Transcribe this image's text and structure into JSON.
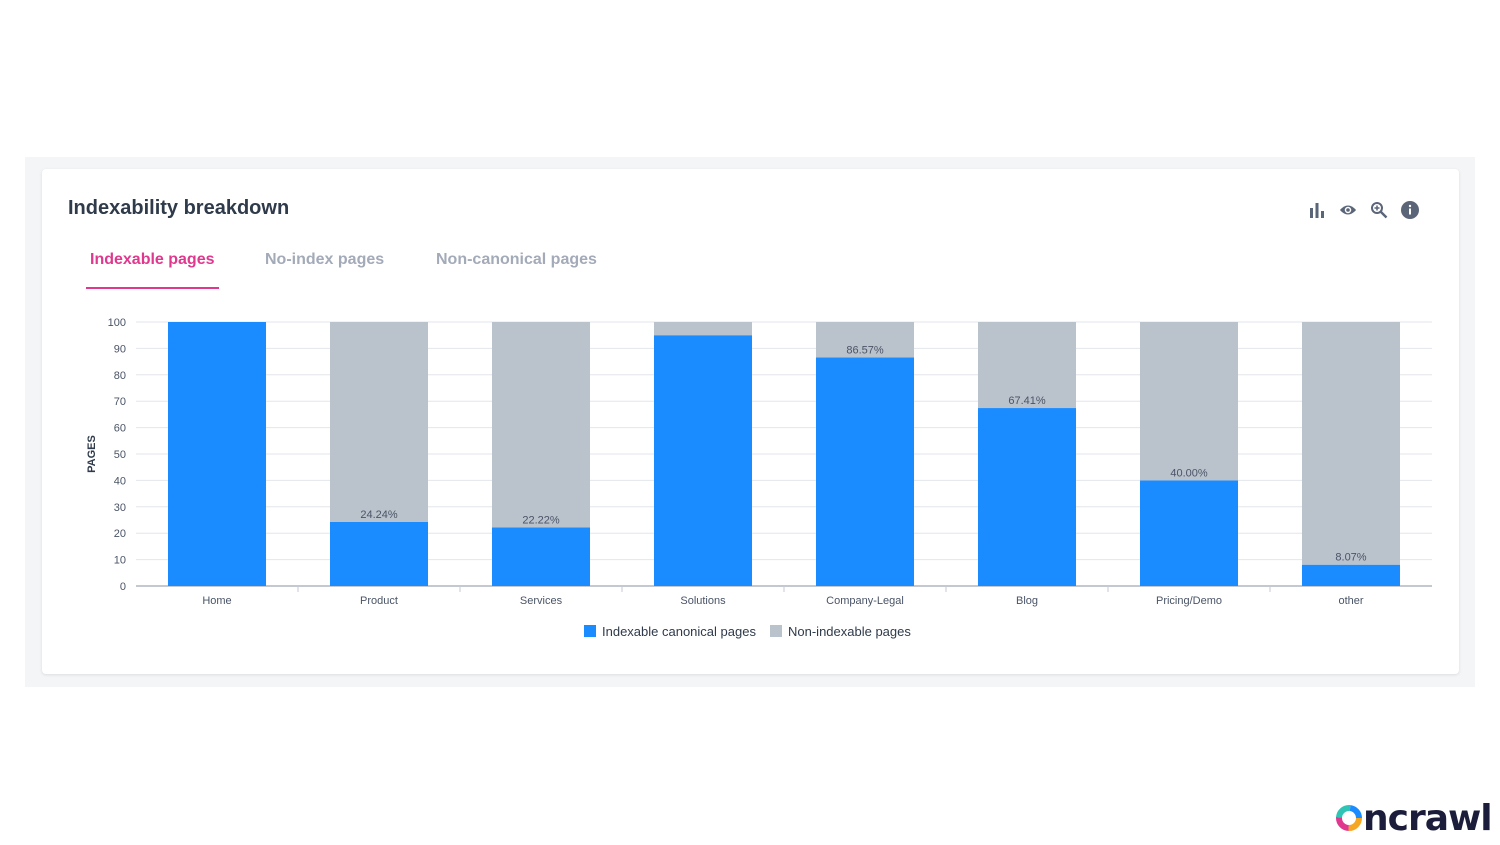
{
  "card": {
    "title": "Indexability breakdown"
  },
  "toolbar": {
    "icons": [
      "bar-chart-icon",
      "eye-icon",
      "zoom-icon",
      "info-icon"
    ]
  },
  "tabs": [
    {
      "label": "Indexable pages",
      "active": true
    },
    {
      "label": "No-index pages",
      "active": false
    },
    {
      "label": "Non-canonical pages",
      "active": false
    }
  ],
  "colors": {
    "indexable": "#1a8cff",
    "non_indexable": "#bac2cc",
    "accent": "#e0388e"
  },
  "chart_data": {
    "type": "bar",
    "stacked": true,
    "categories": [
      "Home",
      "Product",
      "Services",
      "Solutions",
      "Company-Legal",
      "Blog",
      "Pricing/Demo",
      "other"
    ],
    "series": [
      {
        "name": "Indexable canonical pages",
        "values": [
          100,
          24.24,
          22.22,
          95,
          86.57,
          67.41,
          40.0,
          8.07
        ]
      },
      {
        "name": "Non-indexable pages",
        "values": [
          0,
          75.76,
          77.78,
          5,
          13.43,
          32.59,
          60.0,
          91.93
        ]
      }
    ],
    "data_labels": [
      "",
      "24.24%",
      "22.22%",
      "",
      "86.57%",
      "67.41%",
      "40.00%",
      "8.07%"
    ],
    "ylabel": "PAGES",
    "xlabel": "",
    "ylim": [
      0,
      100
    ],
    "yticks": [
      0,
      10,
      20,
      30,
      40,
      50,
      60,
      70,
      80,
      90,
      100
    ],
    "grid": true,
    "legend_position": "bottom-center"
  },
  "logo": {
    "text": "oncrawl"
  }
}
